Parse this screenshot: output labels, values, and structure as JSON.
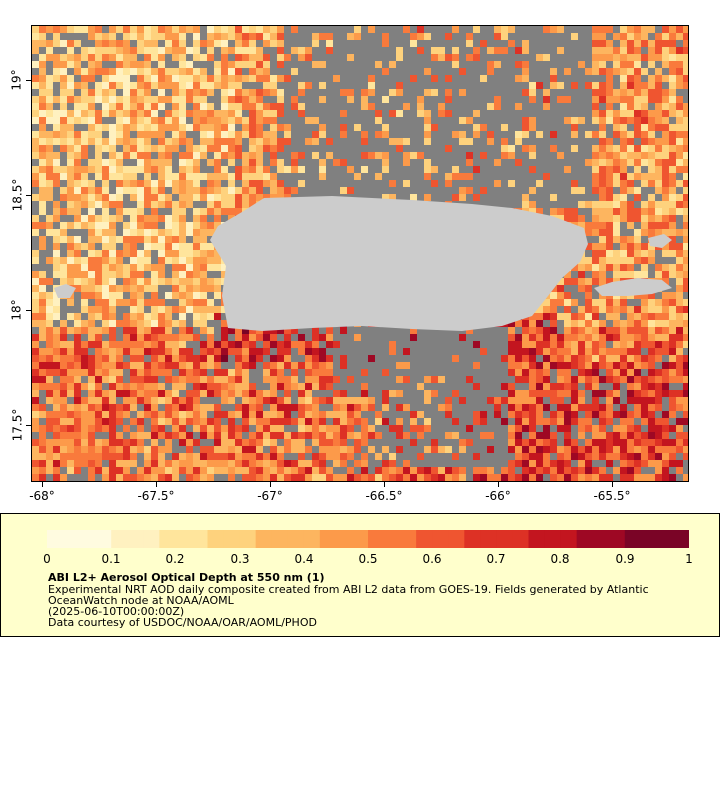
{
  "map": {
    "latitude_labels": [
      "19°",
      "18.5°",
      "18°",
      "17.5°"
    ],
    "longitude_labels": [
      "-68°",
      "-67.5°",
      "-67°",
      "-66.5°",
      "-66°",
      "-65.5°"
    ],
    "land_color": "#cccccc",
    "missing_color": "#808080"
  },
  "legend": {
    "colorbar_ticks": [
      "0",
      "0.1",
      "0.2",
      "0.3",
      "0.4",
      "0.5",
      "0.6",
      "0.7",
      "0.8",
      "0.9",
      "1"
    ],
    "title": "ABI L2+ Aerosol Optical Depth at 550 nm (1)",
    "line1": "Experimental NRT AOD daily composite created from ABI L2 data from GOES-19. Fields generated by Atlantic",
    "line2": "OceanWatch node at NOAA/AOML",
    "line3": "(2025-06-10T00:00:00Z)",
    "line4": "Data courtesy of USDOC/NOAA/OAR/AOML/PHOD",
    "colormap": [
      "#fffbe0",
      "#fff1c0",
      "#ffe59c",
      "#fed27d",
      "#fdb55f",
      "#fc9a4a",
      "#f97a3c",
      "#ef5530",
      "#dd3125",
      "#c3151f",
      "#9e0824",
      "#7a0426"
    ]
  }
}
